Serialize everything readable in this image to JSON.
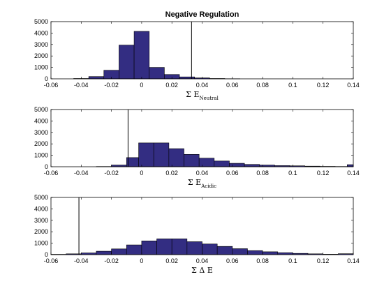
{
  "chart_data": [
    {
      "type": "histogram",
      "title": "Negative Regulation",
      "xlabel_main": "Σ E",
      "xlabel_sub": "Neutral",
      "xlim": [
        -0.06,
        0.14
      ],
      "ylim": [
        0,
        5000
      ],
      "xticks": [
        "-0.06",
        "-0.04",
        "-0.02",
        "0",
        "0.02",
        "0.04",
        "0.06",
        "0.08",
        "0.1",
        "0.12",
        "0.14"
      ],
      "yticks": [
        "0",
        "1000",
        "2000",
        "3000",
        "4000",
        "5000"
      ],
      "bins": [
        {
          "x0": -0.045,
          "x1": -0.035,
          "count": 30
        },
        {
          "x0": -0.035,
          "x1": -0.025,
          "count": 200
        },
        {
          "x0": -0.025,
          "x1": -0.015,
          "count": 750
        },
        {
          "x0": -0.015,
          "x1": -0.005,
          "count": 2950
        },
        {
          "x0": -0.005,
          "x1": 0.005,
          "count": 4150
        },
        {
          "x0": 0.005,
          "x1": 0.015,
          "count": 1000
        },
        {
          "x0": 0.015,
          "x1": 0.025,
          "count": 380
        },
        {
          "x0": 0.025,
          "x1": 0.035,
          "count": 170
        },
        {
          "x0": 0.035,
          "x1": 0.045,
          "count": 80
        },
        {
          "x0": 0.045,
          "x1": 0.055,
          "count": 30
        },
        {
          "x0": 0.055,
          "x1": 0.065,
          "count": 10
        }
      ],
      "reference_line": 0.033
    },
    {
      "type": "histogram",
      "xlabel_main": "Σ E",
      "xlabel_sub": "Acidic",
      "xlim": [
        -0.06,
        0.14
      ],
      "ylim": [
        0,
        5000
      ],
      "xticks": [
        "-0.06",
        "-0.04",
        "-0.02",
        "0",
        "0.02",
        "0.04",
        "0.06",
        "0.08",
        "0.1",
        "0.12",
        "0.14"
      ],
      "yticks": [
        "0",
        "1000",
        "2000",
        "3000",
        "4000",
        "5000"
      ],
      "bins": [
        {
          "x0": -0.03,
          "x1": -0.02,
          "count": 20
        },
        {
          "x0": -0.02,
          "x1": -0.01,
          "count": 150
        },
        {
          "x0": -0.01,
          "x1": -0.002,
          "count": 800
        },
        {
          "x0": -0.002,
          "x1": 0.008,
          "count": 2080
        },
        {
          "x0": 0.008,
          "x1": 0.018,
          "count": 2080
        },
        {
          "x0": 0.018,
          "x1": 0.028,
          "count": 1580
        },
        {
          "x0": 0.028,
          "x1": 0.038,
          "count": 1080
        },
        {
          "x0": 0.038,
          "x1": 0.048,
          "count": 750
        },
        {
          "x0": 0.048,
          "x1": 0.058,
          "count": 500
        },
        {
          "x0": 0.058,
          "x1": 0.068,
          "count": 300
        },
        {
          "x0": 0.068,
          "x1": 0.078,
          "count": 200
        },
        {
          "x0": 0.078,
          "x1": 0.088,
          "count": 150
        },
        {
          "x0": 0.088,
          "x1": 0.098,
          "count": 100
        },
        {
          "x0": 0.098,
          "x1": 0.108,
          "count": 80
        },
        {
          "x0": 0.108,
          "x1": 0.118,
          "count": 50
        },
        {
          "x0": 0.118,
          "x1": 0.128,
          "count": 30
        },
        {
          "x0": 0.128,
          "x1": 0.136,
          "count": 20
        },
        {
          "x0": 0.136,
          "x1": 0.14,
          "count": 180
        }
      ],
      "reference_line": -0.009
    },
    {
      "type": "histogram",
      "xlabel_main": "Σ Δ E",
      "xlabel_sub": "",
      "xlim": [
        -0.06,
        0.14
      ],
      "ylim": [
        0,
        5000
      ],
      "xticks": [
        "-0.06",
        "-0.04",
        "-0.02",
        "0",
        "0.02",
        "0.04",
        "0.06",
        "0.08",
        "0.1",
        "0.12",
        "0.14"
      ],
      "yticks": [
        "0",
        "1000",
        "2000",
        "3000",
        "4000",
        "5000"
      ],
      "bins": [
        {
          "x0": -0.06,
          "x1": -0.05,
          "count": 30
        },
        {
          "x0": -0.05,
          "x1": -0.04,
          "count": 70
        },
        {
          "x0": -0.04,
          "x1": -0.03,
          "count": 150
        },
        {
          "x0": -0.03,
          "x1": -0.02,
          "count": 300
        },
        {
          "x0": -0.02,
          "x1": -0.01,
          "count": 500
        },
        {
          "x0": -0.01,
          "x1": 0.0,
          "count": 850
        },
        {
          "x0": 0.0,
          "x1": 0.01,
          "count": 1200
        },
        {
          "x0": 0.01,
          "x1": 0.02,
          "count": 1380
        },
        {
          "x0": 0.02,
          "x1": 0.03,
          "count": 1380
        },
        {
          "x0": 0.03,
          "x1": 0.04,
          "count": 1130
        },
        {
          "x0": 0.04,
          "x1": 0.05,
          "count": 930
        },
        {
          "x0": 0.05,
          "x1": 0.06,
          "count": 720
        },
        {
          "x0": 0.06,
          "x1": 0.07,
          "count": 520
        },
        {
          "x0": 0.07,
          "x1": 0.08,
          "count": 350
        },
        {
          "x0": 0.08,
          "x1": 0.09,
          "count": 250
        },
        {
          "x0": 0.09,
          "x1": 0.1,
          "count": 170
        },
        {
          "x0": 0.1,
          "x1": 0.11,
          "count": 110
        },
        {
          "x0": 0.11,
          "x1": 0.12,
          "count": 70
        },
        {
          "x0": 0.12,
          "x1": 0.13,
          "count": 40
        },
        {
          "x0": 0.13,
          "x1": 0.14,
          "count": 80
        }
      ],
      "reference_line": -0.0415
    }
  ],
  "colors": {
    "bar_fill": "#332d82",
    "bar_edge": "#000000",
    "axis": "#000000"
  }
}
